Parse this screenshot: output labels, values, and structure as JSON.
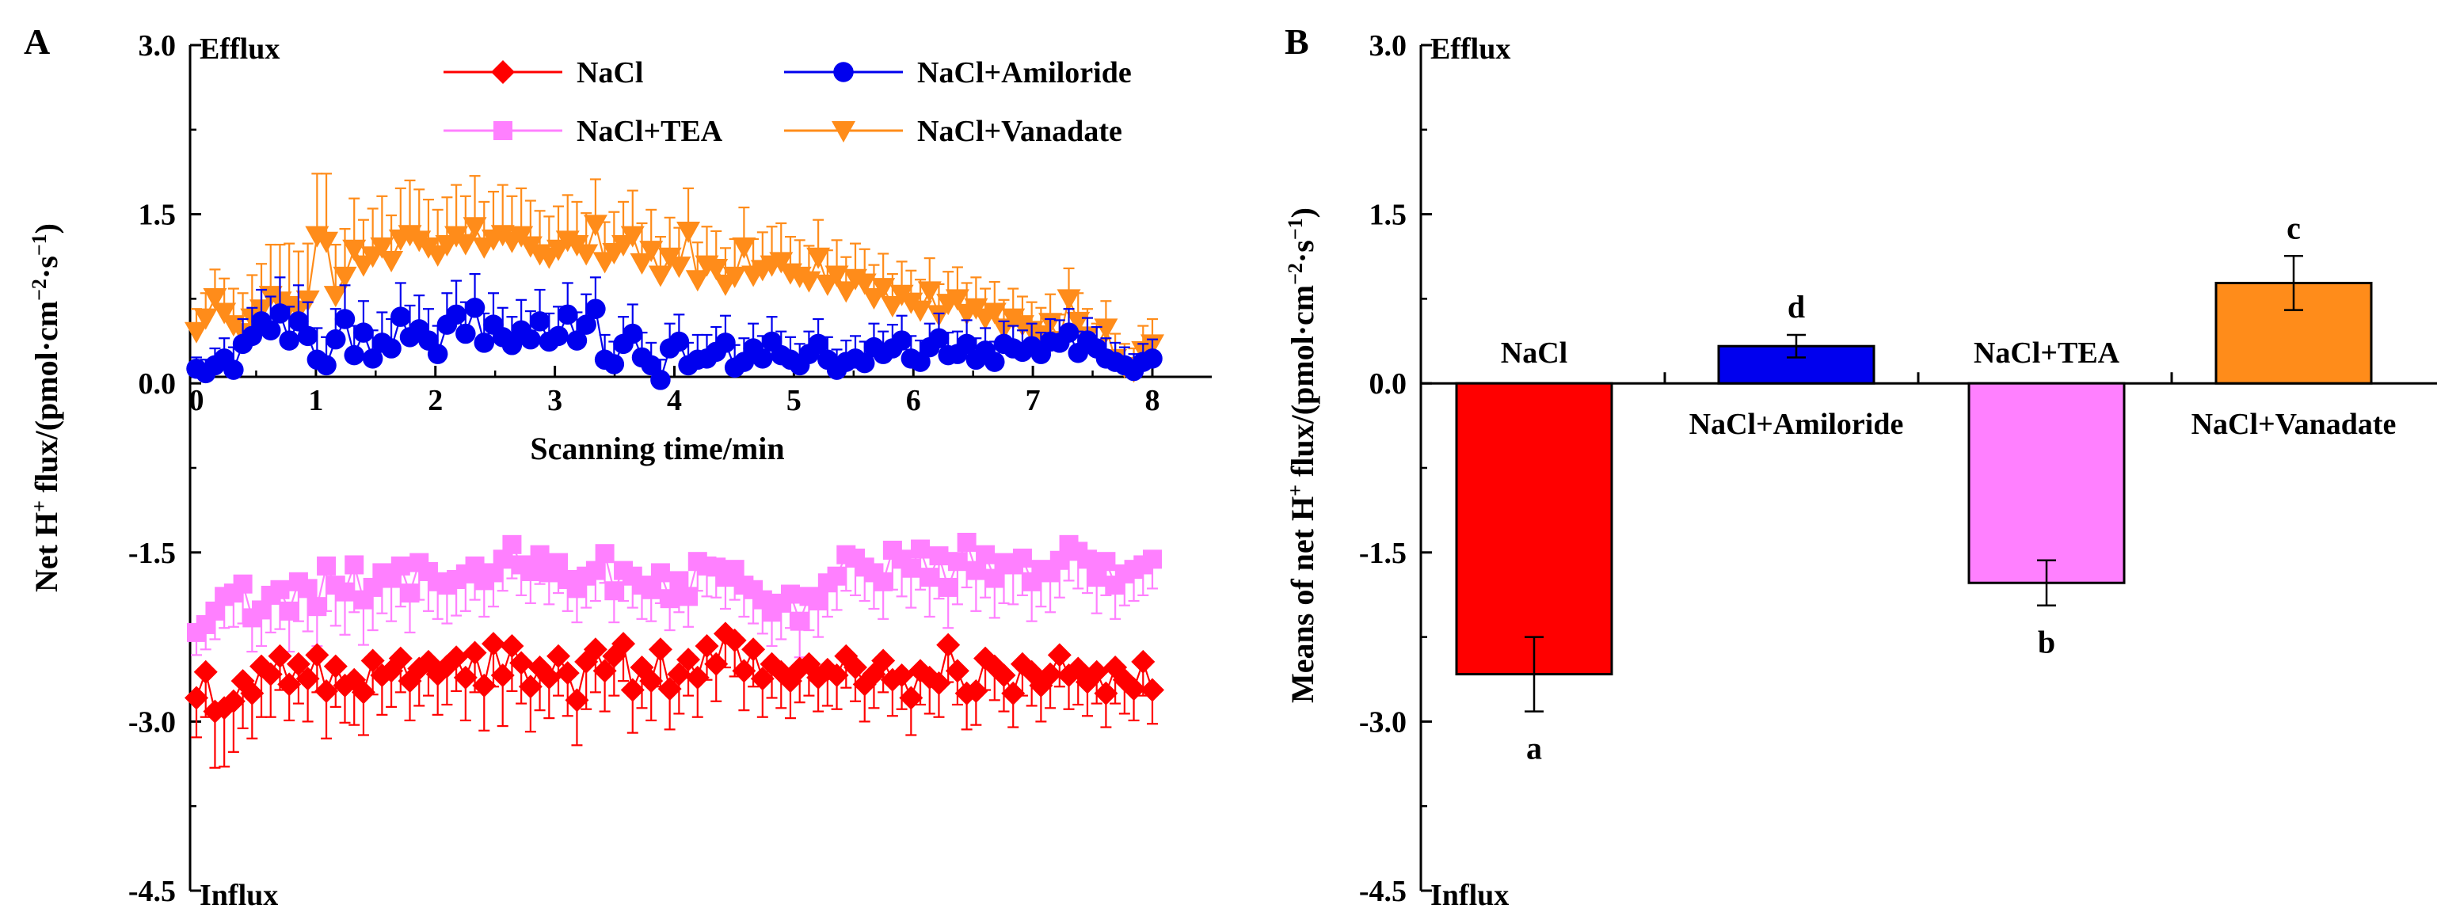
{
  "chart_data": [
    {
      "panel": "A",
      "type": "line",
      "xlabel": "Scanning time/min",
      "ylabel": "Net H⁺ flux/(pmol·cm⁻²·s⁻¹)",
      "xlim": [
        0,
        8
      ],
      "ylim": [
        -4.5,
        3.0
      ],
      "xticks": [
        "0",
        "1",
        "2",
        "3",
        "4",
        "5",
        "6",
        "7",
        "8"
      ],
      "yticks": [
        "3.0",
        "1.5",
        "0.0",
        "-1.5",
        "-3.0",
        "-4.5"
      ],
      "top_annotation": "Efflux",
      "bottom_annotation": "Influx",
      "legend": [
        "NaCl",
        "NaCl+Amiloride",
        "NaCl+TEA",
        "NaCl+Vanadate"
      ],
      "series": [
        {
          "name": "NaCl",
          "color": "#ff0000",
          "marker": "diamond",
          "values": [
            -2.79,
            -2.56,
            -2.91,
            -2.88,
            -2.82,
            -2.64,
            -2.75,
            -2.51,
            -2.58,
            -2.42,
            -2.67,
            -2.49,
            -2.62,
            -2.41,
            -2.73,
            -2.51,
            -2.68,
            -2.63,
            -2.74,
            -2.46,
            -2.59,
            -2.55,
            -2.44,
            -2.64,
            -2.53,
            -2.47,
            -2.58,
            -2.51,
            -2.43,
            -2.61,
            -2.39,
            -2.68,
            -2.31,
            -2.59,
            -2.33,
            -2.48,
            -2.69,
            -2.52,
            -2.61,
            -2.42,
            -2.57,
            -2.81,
            -2.47,
            -2.36,
            -2.55,
            -2.42,
            -2.31,
            -2.72,
            -2.52,
            -2.64,
            -2.36,
            -2.71,
            -2.58,
            -2.45,
            -2.61,
            -2.33,
            -2.49,
            -2.22,
            -2.28,
            -2.55,
            -2.36,
            -2.62,
            -2.49,
            -2.56,
            -2.64,
            -2.53,
            -2.49,
            -2.61,
            -2.54,
            -2.59,
            -2.42,
            -2.52,
            -2.67,
            -2.58,
            -2.46,
            -2.63,
            -2.59,
            -2.79,
            -2.55,
            -2.61,
            -2.66,
            -2.32,
            -2.55,
            -2.75,
            -2.73,
            -2.44,
            -2.51,
            -2.59,
            -2.75,
            -2.49,
            -2.56,
            -2.68,
            -2.58,
            -2.41,
            -2.59,
            -2.53,
            -2.65,
            -2.56,
            -2.75,
            -2.52,
            -2.63,
            -2.71,
            -2.47,
            -2.72
          ],
          "errors": [
            0.35,
            0.4,
            0.5,
            0.52,
            0.45,
            0.42,
            0.4,
            0.45,
            0.38,
            0.3,
            0.32,
            0.35,
            0.38,
            0.33,
            0.42,
            0.36,
            0.33,
            0.4,
            0.38,
            0.3,
            0.35,
            0.32,
            0.3,
            0.35,
            0.33,
            0.3,
            0.36,
            0.34,
            0.3,
            0.38,
            0.35,
            0.4,
            0.38,
            0.45,
            0.4,
            0.36,
            0.4,
            0.38,
            0.36,
            0.35,
            0.38,
            0.4,
            0.42,
            0.38,
            0.36,
            0.35,
            0.33,
            0.38,
            0.36,
            0.35,
            0.33,
            0.36,
            0.35,
            0.32,
            0.35,
            0.3,
            0.33,
            0.3,
            0.32,
            0.35,
            0.33,
            0.34,
            0.3,
            0.32,
            0.33,
            0.3,
            0.28,
            0.3,
            0.32,
            0.3,
            0.28,
            0.3,
            0.33,
            0.3,
            0.28,
            0.32,
            0.3,
            0.33,
            0.3,
            0.32,
            0.3,
            0.33,
            0.3,
            0.32,
            0.3,
            0.28,
            0.3,
            0.32,
            0.3,
            0.28,
            0.3,
            0.32,
            0.3,
            0.28,
            0.3,
            0.32,
            0.3,
            0.28,
            0.3,
            0.32,
            0.3,
            0.28,
            0.3,
            0.3
          ]
        },
        {
          "name": "NaCl+Amiloride",
          "color": "#0000ee",
          "marker": "circle",
          "values": [
            0.13,
            0.09,
            0.16,
            0.22,
            0.12,
            0.35,
            0.42,
            0.55,
            0.47,
            0.62,
            0.38,
            0.55,
            0.42,
            0.21,
            0.16,
            0.39,
            0.57,
            0.25,
            0.45,
            0.22,
            0.36,
            0.31,
            0.59,
            0.41,
            0.48,
            0.38,
            0.26,
            0.52,
            0.61,
            0.44,
            0.67,
            0.36,
            0.52,
            0.41,
            0.34,
            0.47,
            0.39,
            0.55,
            0.37,
            0.42,
            0.61,
            0.38,
            0.52,
            0.66,
            0.21,
            0.17,
            0.35,
            0.44,
            0.23,
            0.16,
            0.03,
            0.31,
            0.37,
            0.16,
            0.21,
            0.22,
            0.28,
            0.36,
            0.14,
            0.19,
            0.31,
            0.22,
            0.37,
            0.25,
            0.21,
            0.16,
            0.26,
            0.35,
            0.21,
            0.12,
            0.19,
            0.22,
            0.18,
            0.32,
            0.26,
            0.31,
            0.38,
            0.22,
            0.19,
            0.32,
            0.4,
            0.25,
            0.26,
            0.35,
            0.21,
            0.29,
            0.19,
            0.35,
            0.31,
            0.28,
            0.33,
            0.26,
            0.37,
            0.36,
            0.45,
            0.27,
            0.38,
            0.31,
            0.22,
            0.19,
            0.16,
            0.11,
            0.19,
            0.22
          ],
          "errors": [
            0.1,
            0.12,
            0.15,
            0.18,
            0.2,
            0.22,
            0.25,
            0.28,
            0.3,
            0.32,
            0.3,
            0.32,
            0.3,
            0.28,
            0.25,
            0.27,
            0.3,
            0.26,
            0.28,
            0.25,
            0.27,
            0.26,
            0.3,
            0.28,
            0.3,
            0.28,
            0.25,
            0.28,
            0.3,
            0.28,
            0.3,
            0.26,
            0.28,
            0.26,
            0.25,
            0.27,
            0.25,
            0.28,
            0.25,
            0.26,
            0.28,
            0.25,
            0.27,
            0.28,
            0.22,
            0.2,
            0.24,
            0.26,
            0.22,
            0.2,
            0.18,
            0.22,
            0.24,
            0.2,
            0.22,
            0.21,
            0.22,
            0.24,
            0.2,
            0.21,
            0.22,
            0.2,
            0.22,
            0.21,
            0.2,
            0.19,
            0.2,
            0.22,
            0.2,
            0.18,
            0.19,
            0.2,
            0.19,
            0.21,
            0.2,
            0.21,
            0.22,
            0.2,
            0.19,
            0.21,
            0.22,
            0.2,
            0.2,
            0.21,
            0.19,
            0.2,
            0.18,
            0.2,
            0.2,
            0.19,
            0.2,
            0.19,
            0.2,
            0.2,
            0.21,
            0.19,
            0.2,
            0.19,
            0.18,
            0.17,
            0.16,
            0.15,
            0.16,
            0.17
          ]
        },
        {
          "name": "NaCl+TEA",
          "color": "#ff80ff",
          "marker": "square",
          "values": [
            -2.21,
            -2.14,
            -2.02,
            -1.89,
            -1.86,
            -1.78,
            -2.08,
            -2.01,
            -1.88,
            -1.83,
            -2.02,
            -1.76,
            -1.82,
            -1.98,
            -1.62,
            -1.79,
            -1.85,
            -1.61,
            -1.92,
            -1.81,
            -1.68,
            -1.73,
            -1.62,
            -1.86,
            -1.59,
            -1.67,
            -1.76,
            -1.79,
            -1.74,
            -1.69,
            -1.62,
            -1.75,
            -1.68,
            -1.56,
            -1.43,
            -1.61,
            -1.67,
            -1.52,
            -1.68,
            -1.59,
            -1.74,
            -1.82,
            -1.71,
            -1.66,
            -1.51,
            -1.84,
            -1.66,
            -1.71,
            -1.79,
            -1.83,
            -1.68,
            -1.91,
            -1.75,
            -1.89,
            -1.58,
            -1.62,
            -1.63,
            -1.72,
            -1.65,
            -1.79,
            -1.83,
            -1.92,
            -2.03,
            -1.95,
            -1.87,
            -2.11,
            -1.89,
            -1.93,
            -1.77,
            -1.71,
            -1.52,
            -1.55,
            -1.63,
            -1.68,
            -1.76,
            -1.48,
            -1.56,
            -1.64,
            -1.47,
            -1.72,
            -1.53,
            -1.81,
            -1.58,
            -1.41,
            -1.66,
            -1.52,
            -1.73,
            -1.59,
            -1.61,
            -1.55,
            -1.76,
            -1.65,
            -1.68,
            -1.57,
            -1.43,
            -1.49,
            -1.56,
            -1.72,
            -1.58,
            -1.79,
            -1.69,
            -1.65,
            -1.61,
            -1.56
          ],
          "errors": [
            0.2,
            0.22,
            0.25,
            0.28,
            0.3,
            0.35,
            0.3,
            0.32,
            0.33,
            0.35,
            0.36,
            0.35,
            0.38,
            0.35,
            0.4,
            0.36,
            0.38,
            0.42,
            0.4,
            0.38,
            0.36,
            0.38,
            0.36,
            0.35,
            0.33,
            0.35,
            0.33,
            0.34,
            0.32,
            0.33,
            0.3,
            0.32,
            0.3,
            0.28,
            0.3,
            0.27,
            0.28,
            0.26,
            0.28,
            0.27,
            0.28,
            0.3,
            0.28,
            0.27,
            0.26,
            0.28,
            0.27,
            0.28,
            0.3,
            0.28,
            0.27,
            0.28,
            0.28,
            0.27,
            0.26,
            0.27,
            0.27,
            0.28,
            0.27,
            0.28,
            0.3,
            0.3,
            0.3,
            0.32,
            0.3,
            0.32,
            0.3,
            0.32,
            0.3,
            0.3,
            0.32,
            0.33,
            0.3,
            0.32,
            0.33,
            0.35,
            0.33,
            0.35,
            0.36,
            0.35,
            0.38,
            0.36,
            0.38,
            0.4,
            0.36,
            0.38,
            0.35,
            0.36,
            0.35,
            0.33,
            0.35,
            0.33,
            0.35,
            0.33,
            0.32,
            0.33,
            0.3,
            0.32,
            0.3,
            0.3,
            0.28,
            0.28,
            0.27,
            0.26
          ]
        },
        {
          "name": "NaCl+Vanadate",
          "color": "#ff8c1a",
          "marker": "triangle-down",
          "values": [
            0.46,
            0.58,
            0.76,
            0.63,
            0.52,
            0.45,
            0.58,
            0.66,
            0.78,
            0.73,
            0.69,
            0.65,
            0.74,
            1.31,
            1.26,
            0.78,
            0.95,
            1.19,
            1.05,
            1.13,
            1.21,
            1.09,
            1.28,
            1.32,
            1.27,
            1.21,
            1.14,
            1.23,
            1.31,
            1.24,
            1.39,
            1.21,
            1.28,
            1.32,
            1.26,
            1.31,
            1.22,
            1.15,
            1.12,
            1.19,
            1.27,
            1.23,
            1.15,
            1.41,
            1.08,
            1.16,
            1.23,
            1.31,
            1.07,
            1.18,
            0.96,
            1.12,
            1.04,
            1.35,
            0.92,
            1.05,
            1.02,
            0.88,
            0.95,
            1.21,
            0.96,
            1.01,
            1.05,
            1.08,
            0.98,
            0.95,
            0.91,
            1.12,
            0.88,
            0.96,
            0.82,
            0.93,
            0.89,
            0.76,
            0.85,
            0.69,
            0.79,
            0.72,
            0.65,
            0.82,
            0.61,
            0.71,
            0.75,
            0.62,
            0.67,
            0.58,
            0.63,
            0.49,
            0.58,
            0.52,
            0.47,
            0.43,
            0.54,
            0.38,
            0.75,
            0.55,
            0.42,
            0.31,
            0.49,
            0.22,
            0.15,
            0.11,
            0.29,
            0.35
          ],
          "errors": [
            0.2,
            0.22,
            0.25,
            0.3,
            0.32,
            0.35,
            0.38,
            0.4,
            0.45,
            0.5,
            0.55,
            0.52,
            0.5,
            0.55,
            0.6,
            0.45,
            0.42,
            0.45,
            0.4,
            0.42,
            0.45,
            0.4,
            0.45,
            0.48,
            0.45,
            0.42,
            0.4,
            0.42,
            0.45,
            0.42,
            0.45,
            0.4,
            0.42,
            0.44,
            0.4,
            0.42,
            0.4,
            0.38,
            0.36,
            0.38,
            0.4,
            0.38,
            0.36,
            0.4,
            0.35,
            0.36,
            0.38,
            0.4,
            0.35,
            0.36,
            0.34,
            0.35,
            0.34,
            0.38,
            0.33,
            0.34,
            0.33,
            0.32,
            0.33,
            0.35,
            0.32,
            0.33,
            0.34,
            0.34,
            0.32,
            0.32,
            0.31,
            0.33,
            0.3,
            0.31,
            0.3,
            0.31,
            0.3,
            0.29,
            0.3,
            0.28,
            0.29,
            0.28,
            0.27,
            0.29,
            0.27,
            0.28,
            0.28,
            0.27,
            0.27,
            0.26,
            0.27,
            0.25,
            0.26,
            0.25,
            0.25,
            0.24,
            0.25,
            0.23,
            0.27,
            0.25,
            0.24,
            0.22,
            0.24,
            0.22,
            0.2,
            0.2,
            0.22,
            0.22
          ]
        }
      ]
    },
    {
      "panel": "B",
      "type": "bar",
      "ylabel": "Means of net H⁺ flux/(pmol·cm⁻²·s⁻¹)",
      "ylim": [
        -4.5,
        3.0
      ],
      "yticks": [
        "3.0",
        "1.5",
        "0.0",
        "-1.5",
        "-3.0",
        "-4.5"
      ],
      "top_annotation": "Efflux",
      "bottom_annotation": "Influx",
      "categories": [
        "NaCl",
        "NaCl+Amiloride",
        "NaCl+TEA",
        "NaCl+Vanadate"
      ],
      "values": [
        -2.58,
        0.33,
        -1.77,
        0.89
      ],
      "errors": [
        0.33,
        0.1,
        0.2,
        0.24
      ],
      "colors": [
        "#ff0000",
        "#0000ee",
        "#ff80ff",
        "#ff8c1a"
      ],
      "significance": [
        "a",
        "d",
        "b",
        "c"
      ]
    }
  ]
}
